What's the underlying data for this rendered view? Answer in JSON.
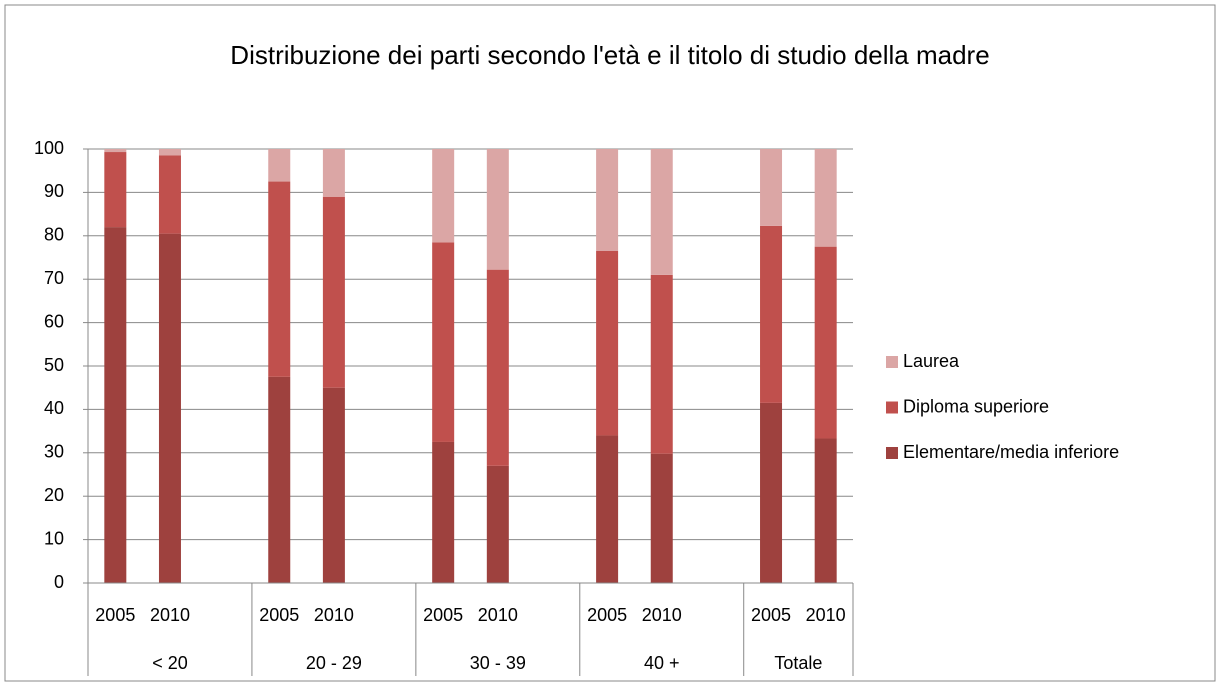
{
  "chart_data": {
    "type": "stacked_bar",
    "title": "Distribuzione dei parti secondo l'età e il titolo di studio della madre",
    "groups": [
      "< 20",
      "20 - 29",
      "30 - 39",
      "40 +",
      "Totale"
    ],
    "categories": [
      "2005",
      "2010",
      "2005",
      "2010",
      "2005",
      "2010",
      "2005",
      "2010",
      "2005",
      "2010"
    ],
    "series": [
      {
        "name": "Elementare/media inferiore",
        "color": "#9e413e",
        "values": [
          82,
          80.5,
          47.5,
          45,
          32.5,
          27,
          34,
          29.8,
          41.5,
          33.3
        ]
      },
      {
        "name": "Diploma superiore",
        "color": "#c0504d",
        "values": [
          17.3,
          18,
          45,
          44,
          46,
          45.2,
          42.5,
          41.2,
          40.8,
          44.2
        ]
      },
      {
        "name": "Laurea",
        "color": "#dba6a5",
        "values": [
          0.7,
          1.5,
          7.5,
          11,
          21.5,
          27.8,
          23.5,
          29,
          17.7,
          22.5
        ]
      }
    ],
    "ylim": [
      0,
      100
    ],
    "yticks": [
      0,
      10,
      20,
      30,
      40,
      50,
      60,
      70,
      80,
      90,
      100
    ],
    "grid": true,
    "legend": "right"
  }
}
